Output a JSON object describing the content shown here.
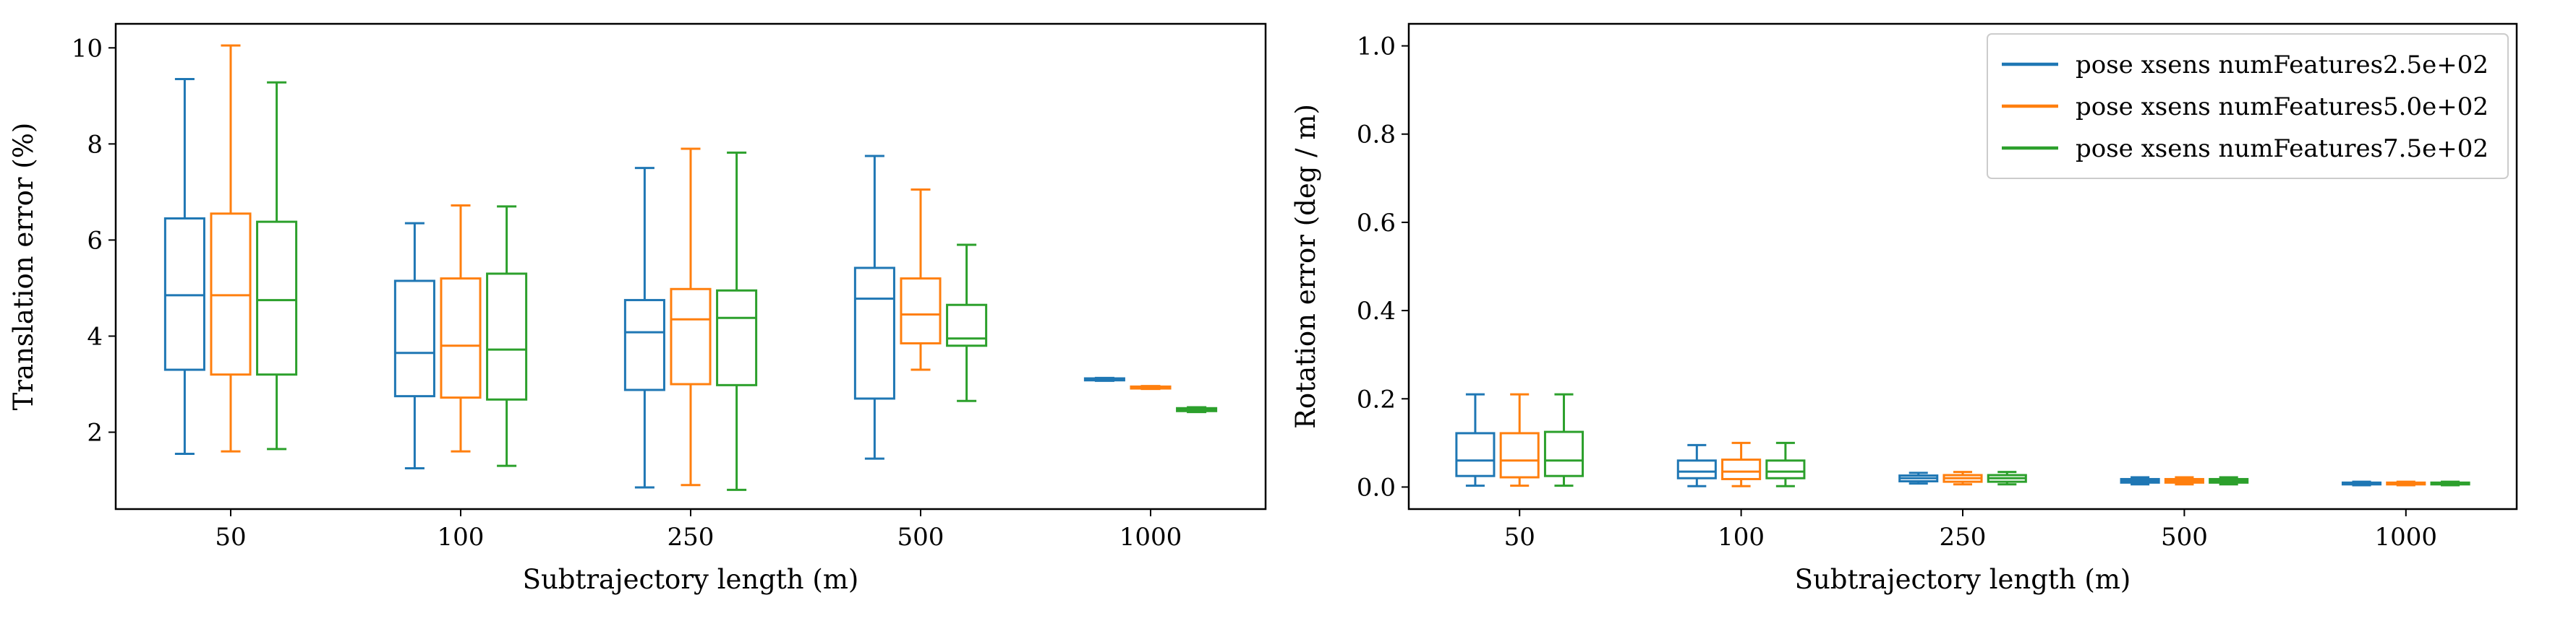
{
  "chart_data": [
    {
      "type": "boxplot",
      "xlabel": "Subtrajectory length (m)",
      "ylabel": "Translation error (%)",
      "categories": [
        "50",
        "100",
        "250",
        "500",
        "1000"
      ],
      "ylim": [
        0.4,
        10.5
      ],
      "yticks": [
        2,
        4,
        6,
        8,
        10
      ],
      "grid": false,
      "series": [
        {
          "color": "#1f77b4",
          "boxes": [
            {
              "whislo": 1.55,
              "q1": 3.3,
              "med": 4.85,
              "q3": 6.45,
              "whishi": 9.35
            },
            {
              "whislo": 1.25,
              "q1": 2.75,
              "med": 3.65,
              "q3": 5.15,
              "whishi": 6.35
            },
            {
              "whislo": 0.85,
              "q1": 2.88,
              "med": 4.08,
              "q3": 4.75,
              "whishi": 7.5
            },
            {
              "whislo": 1.45,
              "q1": 2.7,
              "med": 4.78,
              "q3": 5.42,
              "whishi": 7.75
            },
            {
              "whislo": 3.07,
              "q1": 3.08,
              "med": 3.1,
              "q3": 3.12,
              "whishi": 3.13
            }
          ]
        },
        {
          "color": "#ff7f0e",
          "boxes": [
            {
              "whislo": 1.6,
              "q1": 3.2,
              "med": 4.85,
              "q3": 6.55,
              "whishi": 10.05
            },
            {
              "whislo": 1.6,
              "q1": 2.72,
              "med": 3.8,
              "q3": 5.2,
              "whishi": 6.72
            },
            {
              "whislo": 0.9,
              "q1": 3.0,
              "med": 4.35,
              "q3": 4.98,
              "whishi": 7.9
            },
            {
              "whislo": 3.3,
              "q1": 3.85,
              "med": 4.45,
              "q3": 5.2,
              "whishi": 7.05
            },
            {
              "whislo": 2.9,
              "q1": 2.91,
              "med": 2.93,
              "q3": 2.95,
              "whishi": 2.96
            }
          ]
        },
        {
          "color": "#2ca02c",
          "boxes": [
            {
              "whislo": 1.65,
              "q1": 3.2,
              "med": 4.75,
              "q3": 6.38,
              "whishi": 9.28
            },
            {
              "whislo": 1.3,
              "q1": 2.68,
              "med": 3.72,
              "q3": 5.3,
              "whishi": 6.7
            },
            {
              "whislo": 0.8,
              "q1": 2.98,
              "med": 4.38,
              "q3": 4.95,
              "whishi": 7.82
            },
            {
              "whislo": 2.65,
              "q1": 3.8,
              "med": 3.95,
              "q3": 4.65,
              "whishi": 5.9
            },
            {
              "whislo": 2.42,
              "q1": 2.44,
              "med": 2.47,
              "q3": 2.5,
              "whishi": 2.52
            }
          ]
        }
      ]
    },
    {
      "type": "boxplot",
      "xlabel": "Subtrajectory length (m)",
      "ylabel": "Rotation error (deg / m)",
      "categories": [
        "50",
        "100",
        "250",
        "500",
        "1000"
      ],
      "ylim": [
        -0.05,
        1.05
      ],
      "yticks": [
        0.0,
        0.2,
        0.4,
        0.6,
        0.8,
        1.0
      ],
      "ytick_labels": [
        "0.0",
        "0.2",
        "0.4",
        "0.6",
        "0.8",
        "1.0"
      ],
      "grid": false,
      "legend": {
        "placement": "top-right",
        "entries": [
          {
            "label": "pose xsens numFeatures2.5e+02",
            "color": "#1f77b4"
          },
          {
            "label": "pose xsens numFeatures5.0e+02",
            "color": "#ff7f0e"
          },
          {
            "label": "pose xsens numFeatures7.5e+02",
            "color": "#2ca02c"
          }
        ]
      },
      "series": [
        {
          "color": "#1f77b4",
          "boxes": [
            {
              "whislo": 0.003,
              "q1": 0.025,
              "med": 0.06,
              "q3": 0.122,
              "whishi": 0.21
            },
            {
              "whislo": 0.002,
              "q1": 0.02,
              "med": 0.035,
              "q3": 0.06,
              "whishi": 0.095
            },
            {
              "whislo": 0.008,
              "q1": 0.013,
              "med": 0.02,
              "q3": 0.026,
              "whishi": 0.032
            },
            {
              "whislo": 0.006,
              "q1": 0.01,
              "med": 0.014,
              "q3": 0.018,
              "whishi": 0.022
            },
            {
              "whislo": 0.004,
              "q1": 0.006,
              "med": 0.008,
              "q3": 0.01,
              "whishi": 0.012
            }
          ]
        },
        {
          "color": "#ff7f0e",
          "boxes": [
            {
              "whislo": 0.003,
              "q1": 0.022,
              "med": 0.06,
              "q3": 0.122,
              "whishi": 0.21
            },
            {
              "whislo": 0.002,
              "q1": 0.018,
              "med": 0.035,
              "q3": 0.062,
              "whishi": 0.1
            },
            {
              "whislo": 0.006,
              "q1": 0.012,
              "med": 0.02,
              "q3": 0.027,
              "whishi": 0.034
            },
            {
              "whislo": 0.006,
              "q1": 0.01,
              "med": 0.014,
              "q3": 0.018,
              "whishi": 0.022
            },
            {
              "whislo": 0.004,
              "q1": 0.006,
              "med": 0.008,
              "q3": 0.01,
              "whishi": 0.012
            }
          ]
        },
        {
          "color": "#2ca02c",
          "boxes": [
            {
              "whislo": 0.003,
              "q1": 0.025,
              "med": 0.06,
              "q3": 0.125,
              "whishi": 0.21
            },
            {
              "whislo": 0.002,
              "q1": 0.02,
              "med": 0.035,
              "q3": 0.06,
              "whishi": 0.1
            },
            {
              "whislo": 0.006,
              "q1": 0.012,
              "med": 0.02,
              "q3": 0.027,
              "whishi": 0.034
            },
            {
              "whislo": 0.006,
              "q1": 0.01,
              "med": 0.014,
              "q3": 0.018,
              "whishi": 0.022
            },
            {
              "whislo": 0.004,
              "q1": 0.006,
              "med": 0.008,
              "q3": 0.01,
              "whishi": 0.012
            }
          ]
        }
      ]
    }
  ]
}
